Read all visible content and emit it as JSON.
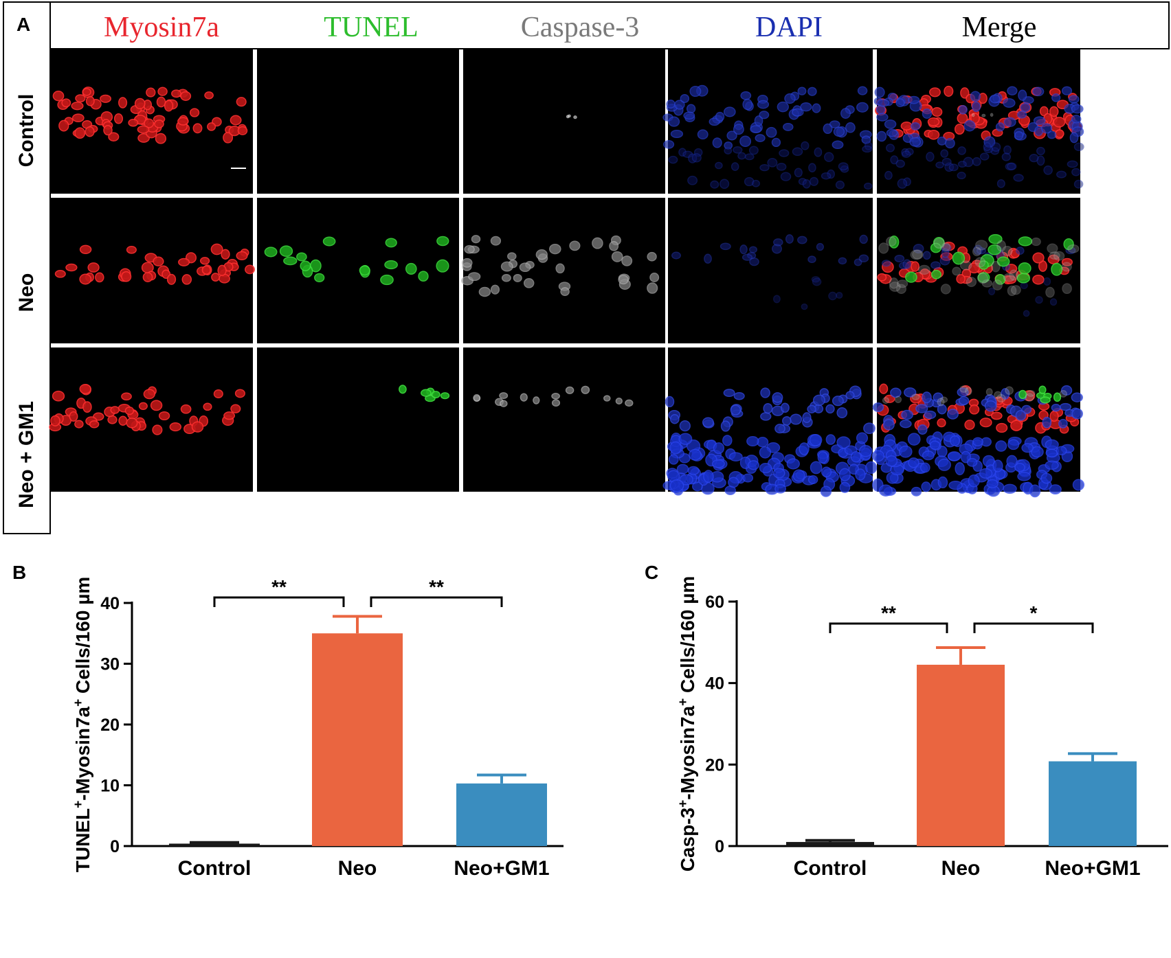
{
  "panel_letters": {
    "a": "A",
    "b": "B",
    "c": "C"
  },
  "micrograph": {
    "channels": [
      {
        "label": "Myosin7a",
        "color": "#e8262e"
      },
      {
        "label": "TUNEL",
        "color": "#2dbd2d"
      },
      {
        "label": "Caspase-3",
        "color": "#7a7a7a"
      },
      {
        "label": "DAPI",
        "color": "#1a2fb0"
      },
      {
        "label": "Merge",
        "color": "#000000"
      }
    ],
    "rows": [
      "Control",
      "Neo",
      "Neo + GM1"
    ]
  },
  "chart_data": [
    {
      "type": "bar",
      "categories": [
        "Control",
        "Neo",
        "Neo+GM1"
      ],
      "values": [
        0.4,
        35.0,
        10.3
      ],
      "errors": [
        0.2,
        2.8,
        1.4
      ],
      "colors": [
        "#1a1a1a",
        "#ea6540",
        "#3a8dbf"
      ],
      "ylabel_parts": [
        "TUNEL",
        "+",
        "-Myosin7a",
        "+",
        " Cells/160 µm"
      ],
      "ylim": [
        0,
        40
      ],
      "yticks": [
        0,
        10,
        20,
        30,
        40
      ],
      "comparisons": [
        {
          "from": "Control",
          "to": "Neo",
          "label": "**"
        },
        {
          "from": "Neo",
          "to": "Neo+GM1",
          "label": "**"
        }
      ]
    },
    {
      "type": "bar",
      "categories": [
        "Control",
        "Neo",
        "Neo+GM1"
      ],
      "values": [
        1.0,
        44.5,
        20.8
      ],
      "errors": [
        0.4,
        4.2,
        1.9
      ],
      "colors": [
        "#1a1a1a",
        "#ea6540",
        "#3a8dbf"
      ],
      "ylabel_parts": [
        "Casp-3",
        "+",
        "-Myosin7a",
        "+",
        " Cells/160 µm"
      ],
      "ylim": [
        0,
        60
      ],
      "yticks": [
        0,
        20,
        40,
        60
      ],
      "comparisons": [
        {
          "from": "Control",
          "to": "Neo",
          "label": "**"
        },
        {
          "from": "Neo",
          "to": "Neo+GM1",
          "label": "*"
        }
      ]
    }
  ]
}
